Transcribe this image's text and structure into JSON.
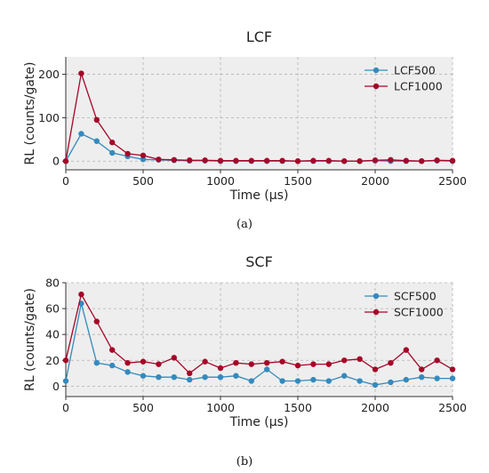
{
  "chart_data": [
    {
      "type": "line",
      "title": "LCF",
      "xlabel": "Time (µs)",
      "ylabel": "RL (counts/gate)",
      "xlim": [
        0,
        2500
      ],
      "ylim": [
        -20,
        240
      ],
      "xticks": [
        "0",
        "500",
        "1000",
        "1500",
        "2000",
        "2500"
      ],
      "yticks": [
        "0",
        "100",
        "200"
      ],
      "grid": true,
      "legend_position": "upper right",
      "x": [
        0,
        100,
        200,
        300,
        400,
        500,
        600,
        700,
        800,
        900,
        1000,
        1100,
        1200,
        1300,
        1400,
        1500,
        1600,
        1700,
        1800,
        1900,
        2000,
        2100,
        2200,
        2300,
        2400,
        2500
      ],
      "series": [
        {
          "name": "LCF500",
          "color": "#348ABD",
          "values": [
            0,
            63,
            46,
            19,
            11,
            4,
            3,
            2,
            1,
            1,
            0,
            0,
            0,
            0,
            0,
            0,
            0,
            0,
            0,
            0,
            1,
            0,
            0,
            0,
            1,
            0
          ]
        },
        {
          "name": "LCF1000",
          "color": "#A60628",
          "values": [
            0,
            202,
            95,
            43,
            17,
            13,
            4,
            3,
            2,
            2,
            1,
            1,
            1,
            1,
            1,
            0,
            1,
            1,
            0,
            0,
            2,
            3,
            1,
            0,
            2,
            1
          ]
        }
      ],
      "caption": "(a)"
    },
    {
      "type": "line",
      "title": "SCF",
      "xlabel": "Time (µs)",
      "ylabel": "RL (counts/gate)",
      "xlim": [
        0,
        2500
      ],
      "ylim": [
        -8,
        80
      ],
      "xticks": [
        "0",
        "500",
        "1000",
        "1500",
        "2000",
        "2500"
      ],
      "yticks": [
        "0",
        "20",
        "40",
        "60",
        "80"
      ],
      "grid": true,
      "legend_position": "upper right",
      "x": [
        0,
        100,
        200,
        300,
        400,
        500,
        600,
        700,
        800,
        900,
        1000,
        1100,
        1200,
        1300,
        1400,
        1500,
        1600,
        1700,
        1800,
        1900,
        2000,
        2100,
        2200,
        2300,
        2400,
        2500
      ],
      "series": [
        {
          "name": "SCF500",
          "color": "#348ABD",
          "values": [
            4,
            64,
            18,
            16,
            11,
            8,
            7,
            7,
            5,
            7,
            7,
            8,
            4,
            13,
            4,
            4,
            5,
            4,
            8,
            4,
            1,
            3,
            5,
            7,
            6,
            6
          ]
        },
        {
          "name": "SCF1000",
          "color": "#A60628",
          "values": [
            20,
            71,
            50,
            28,
            18,
            19,
            17,
            22,
            10,
            19,
            14,
            18,
            17,
            18,
            19,
            16,
            17,
            17,
            20,
            21,
            13,
            18,
            28,
            13,
            20,
            13
          ]
        }
      ],
      "caption": "(b)"
    }
  ]
}
